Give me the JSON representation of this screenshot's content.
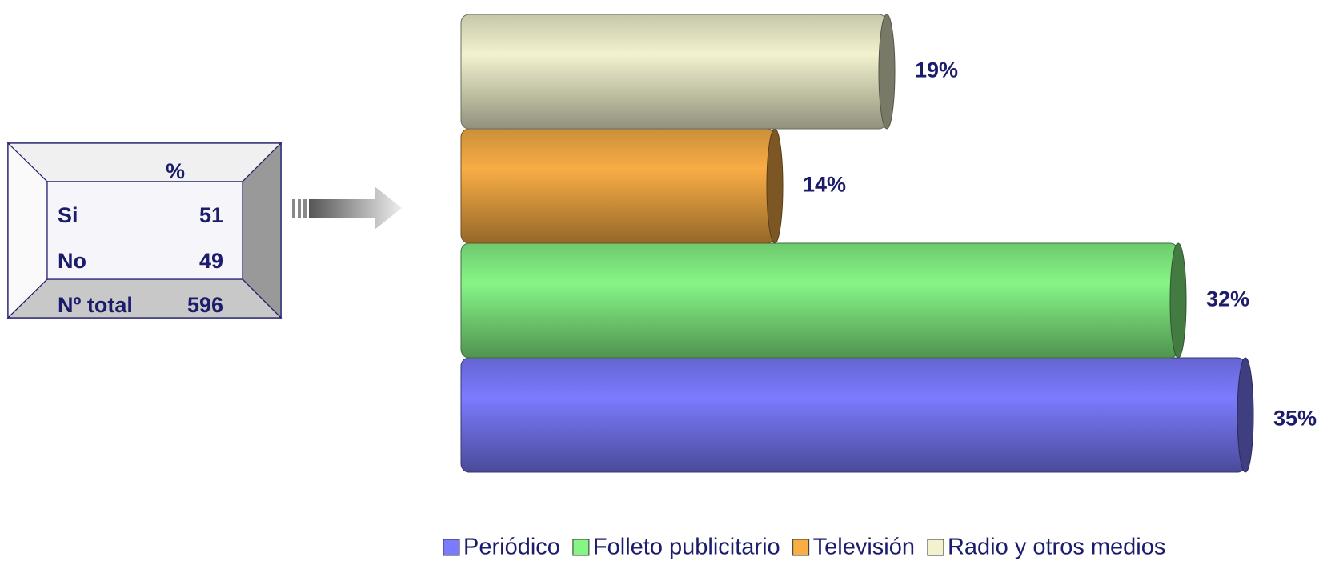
{
  "chart_data": {
    "type": "bar",
    "orientation": "horizontal",
    "series": [
      {
        "name": "Periódico",
        "color": "#7b7bff",
        "values": [
          35
        ],
        "value_labels": [
          "35%"
        ]
      },
      {
        "name": "Folleto publicitario",
        "color": "#86f586",
        "values": [
          32
        ],
        "value_labels": [
          "32%"
        ]
      },
      {
        "name": "Televisión",
        "color": "#f8ad45",
        "values": [
          14
        ],
        "value_labels": [
          "14%"
        ]
      },
      {
        "name": "Radio y otros medios",
        "color": "#f2f2cf",
        "values": [
          19
        ],
        "value_labels": [
          "19%"
        ]
      }
    ],
    "legend": "bottom"
  },
  "table": {
    "header": "%",
    "rows": [
      [
        "Si",
        51
      ],
      [
        "No",
        49
      ],
      [
        "Nº total",
        596
      ]
    ]
  }
}
